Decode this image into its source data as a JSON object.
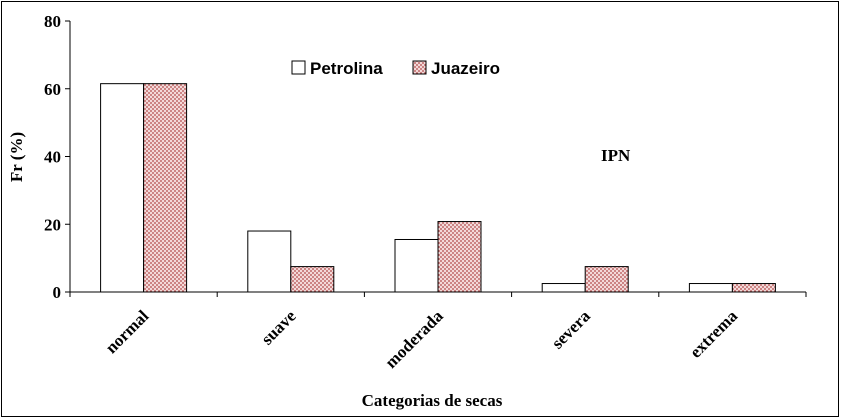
{
  "chart_data": {
    "type": "bar",
    "categories": [
      "normal",
      "suave",
      "moderada",
      "severa",
      "extrema"
    ],
    "series": [
      {
        "name": "Petrolina",
        "values": [
          61.5,
          18.0,
          15.5,
          2.5,
          2.5
        ]
      },
      {
        "name": "Juazeiro",
        "values": [
          61.5,
          7.5,
          20.8,
          7.5,
          2.5
        ]
      }
    ],
    "ylabel": "Fr (%)",
    "xlabel": "Categorias de secas",
    "ylim": [
      0,
      80
    ],
    "yticks": [
      0,
      20,
      40,
      60,
      80
    ],
    "legend_position": "top-center",
    "annotation": "IPN",
    "grid": false,
    "colors": {
      "petrolina_fill": "#ffffff",
      "juazeiro_fill": "#f3d9d9",
      "juazeiro_dot": "#b04848",
      "stroke": "#000000"
    }
  }
}
